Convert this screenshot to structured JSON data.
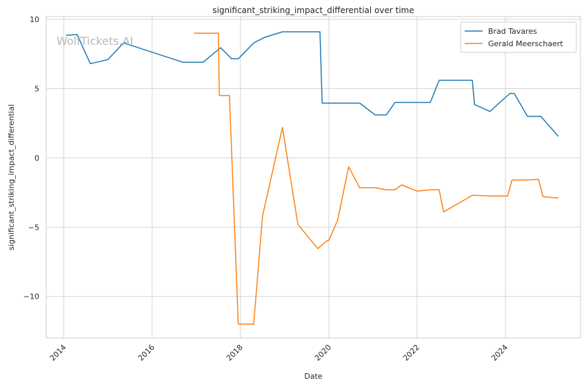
{
  "watermark": "WolfTickets.AI",
  "chart_data": {
    "type": "line",
    "title": "significant_striking_impact_differential over time",
    "xlabel": "Date",
    "ylabel": "significant_striking_impact_differential",
    "xlim": [
      2013.6,
      2025.7
    ],
    "ylim": [
      -13.0,
      10.2
    ],
    "x_ticks": [
      2014,
      2016,
      2018,
      2020,
      2022,
      2024
    ],
    "x_tick_labels": [
      "2014",
      "2016",
      "2018",
      "2020",
      "2022",
      "2024"
    ],
    "y_ticks": [
      10,
      5,
      0,
      -5,
      -10
    ],
    "y_tick_labels": [
      "10",
      "5",
      "0",
      "−5",
      "−10"
    ],
    "grid": true,
    "legend_position": "top-right",
    "series": [
      {
        "name": "Brad Tavares",
        "color": "#1f77b4",
        "x": [
          2014.05,
          2014.3,
          2014.6,
          2015.0,
          2015.35,
          2016.7,
          2017.15,
          2017.55,
          2017.8,
          2017.95,
          2018.3,
          2018.55,
          2018.95,
          2019.8,
          2019.85,
          2020.7,
          2021.05,
          2021.3,
          2021.5,
          2022.3,
          2022.5,
          2023.25,
          2023.3,
          2023.65,
          2024.1,
          2024.2,
          2024.5,
          2024.8,
          2025.2
        ],
        "y": [
          8.85,
          8.9,
          6.8,
          7.1,
          8.3,
          6.9,
          6.9,
          7.95,
          7.15,
          7.15,
          8.3,
          8.7,
          9.1,
          9.1,
          3.95,
          3.95,
          3.1,
          3.1,
          4.0,
          4.0,
          5.6,
          5.6,
          3.85,
          3.35,
          4.65,
          4.65,
          3.0,
          3.0,
          1.55
        ]
      },
      {
        "name": "Gerald Meerschaert",
        "color": "#ff7f0e",
        "x": [
          2016.95,
          2017.5,
          2017.52,
          2017.75,
          2017.95,
          2018.3,
          2018.5,
          2018.95,
          2019.3,
          2019.75,
          2019.95,
          2020.0,
          2020.2,
          2020.45,
          2020.7,
          2021.05,
          2021.3,
          2021.5,
          2021.65,
          2022.0,
          2022.3,
          2022.5,
          2022.6,
          2023.25,
          2023.7,
          2024.05,
          2024.15,
          2024.5,
          2024.75,
          2024.85,
          2025.2
        ],
        "y": [
          9.0,
          9.0,
          4.5,
          4.5,
          -12.0,
          -12.0,
          -4.2,
          2.2,
          -4.8,
          -6.55,
          -6.0,
          -5.95,
          -4.5,
          -0.65,
          -2.15,
          -2.15,
          -2.3,
          -2.3,
          -1.95,
          -2.4,
          -2.3,
          -2.3,
          -3.9,
          -2.7,
          -2.75,
          -2.75,
          -1.6,
          -1.6,
          -1.55,
          -2.8,
          -2.9
        ]
      }
    ]
  }
}
